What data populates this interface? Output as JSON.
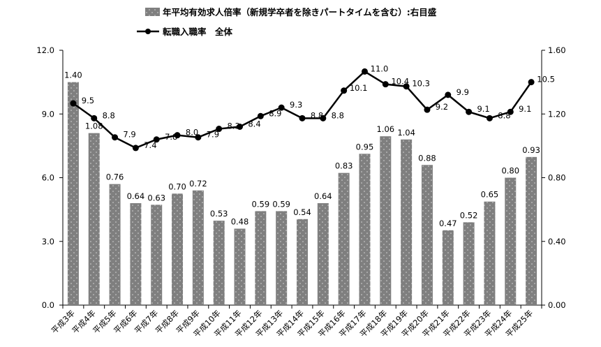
{
  "chart_data": {
    "type": "bar+line",
    "categories": [
      "平成3年",
      "平成4年",
      "平成5年",
      "平成6年",
      "平成7年",
      "平成8年",
      "平成9年",
      "平成10年",
      "平成11年",
      "平成12年",
      "平成13年",
      "平成14年",
      "平成15年",
      "平成16年",
      "平成17年",
      "平成18年",
      "平成19年",
      "平成20年",
      "平成21年",
      "平成22年",
      "平成23年",
      "平成24年",
      "平成25年"
    ],
    "series": [
      {
        "name": "年平均有効求人倍率（新規学卒者を除きパートタイムを含む）:右目盛",
        "type": "bar",
        "axis": "right",
        "color": "#7f7f7f",
        "values": [
          1.4,
          1.08,
          0.76,
          0.64,
          0.63,
          0.7,
          0.72,
          0.53,
          0.48,
          0.59,
          0.59,
          0.54,
          0.64,
          0.83,
          0.95,
          1.06,
          1.04,
          0.88,
          0.47,
          0.52,
          0.65,
          0.8,
          0.93
        ],
        "labels": [
          "1.40",
          "1.08",
          "0.76",
          "0.64",
          "0.63",
          "0.70",
          "0.72",
          "0.53",
          "0.48",
          "0.59",
          "0.59",
          "0.54",
          "0.64",
          "0.83",
          "0.95",
          "1.06",
          "1.04",
          "0.88",
          "0.47",
          "0.52",
          "0.65",
          "0.80",
          "0.93"
        ]
      },
      {
        "name": "転職入職率　全体",
        "type": "line",
        "axis": "left",
        "color": "#000000",
        "values": [
          9.5,
          8.8,
          7.9,
          7.4,
          7.8,
          8.0,
          7.9,
          8.3,
          8.4,
          8.9,
          9.3,
          8.8,
          8.8,
          10.1,
          11.0,
          10.4,
          10.3,
          9.2,
          9.9,
          9.1,
          8.8,
          9.1,
          10.5
        ],
        "labels": [
          "9.5",
          "8.8",
          "7.9",
          "7.4",
          "7.8",
          "8.0",
          "7.9",
          "8.3",
          "8.4",
          "8.9",
          "9.3",
          "8.8",
          "8.8",
          "10.1",
          "11.0",
          "10.4",
          "10.3",
          "9.2",
          "9.9",
          "9.1",
          "8.8",
          "9.1",
          "10.5"
        ]
      }
    ],
    "y_left": {
      "range": [
        0,
        12
      ],
      "ticks": [
        0,
        3,
        6,
        9,
        12
      ],
      "tick_labels": [
        "0.0",
        "3.0",
        "6.0",
        "9.0",
        "12.0"
      ]
    },
    "y_right": {
      "range": [
        0,
        1.6
      ],
      "ticks": [
        0,
        0.4,
        0.8,
        1.2,
        1.6
      ],
      "tick_labels": [
        "0.00",
        "0.40",
        "0.80",
        "1.20",
        "1.60"
      ]
    },
    "grid": false,
    "legend_placement": "top-center"
  }
}
